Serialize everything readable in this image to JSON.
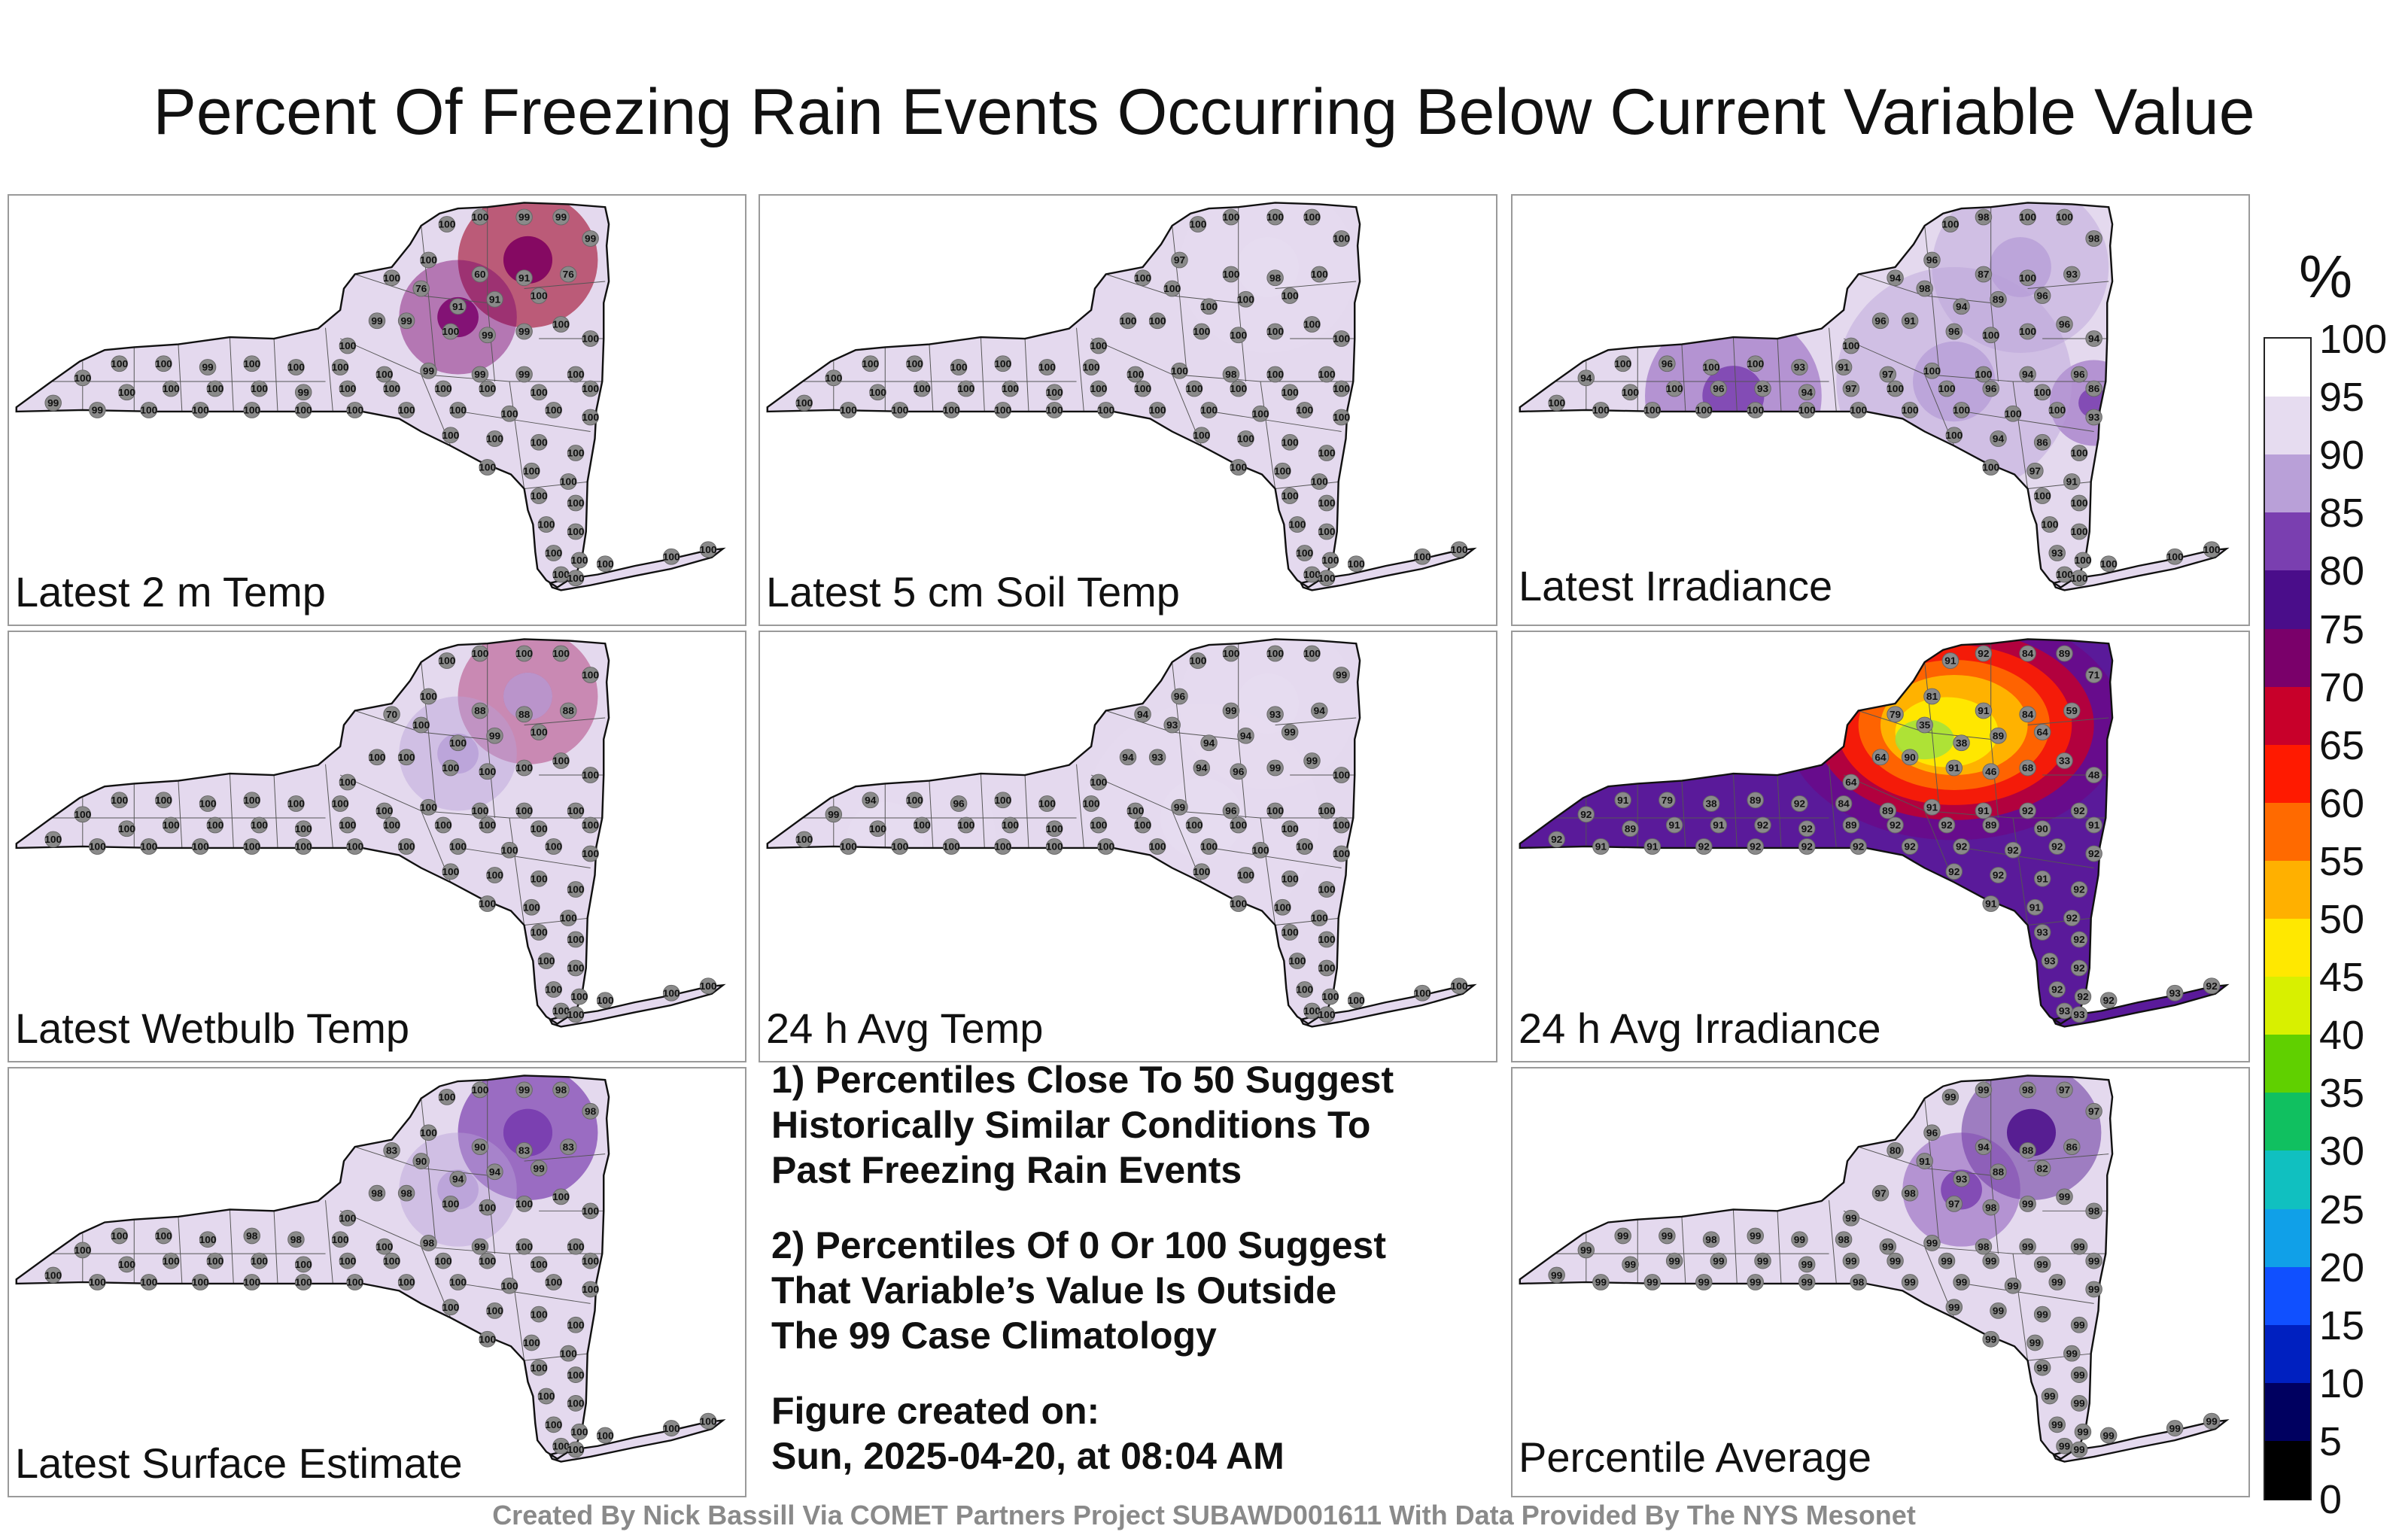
{
  "title": "Percent Of Freezing Rain Events Occurring Below Current Variable Value",
  "panels": [
    {
      "label": "Latest 2 m Temp",
      "hotspots": [
        {
          "v": 60,
          "r": "north"
        },
        {
          "v": 76,
          "r": "north"
        },
        {
          "v": 76,
          "r": "west-adk"
        }
      ],
      "stations": [
        100,
        100,
        99,
        99,
        99,
        100,
        100,
        60,
        91,
        76,
        100,
        91,
        91,
        76,
        99,
        99,
        100,
        99,
        99,
        100,
        100,
        100,
        100,
        100,
        99,
        100,
        100,
        100,
        100,
        99,
        99,
        99,
        100,
        100,
        100,
        100,
        100,
        100,
        99,
        100,
        100,
        100,
        100,
        100,
        100,
        99,
        99,
        100,
        100,
        100,
        100,
        100,
        100,
        100,
        100,
        100,
        100,
        100,
        100,
        100,
        100,
        100,
        100,
        100,
        100,
        100,
        100,
        100,
        100,
        100,
        100,
        100,
        100,
        100,
        100
      ]
    },
    {
      "label": "Latest 5 cm Soil Temp",
      "hotspots": [
        {
          "v": 97,
          "r": "north-light"
        }
      ],
      "stations": [
        100,
        100,
        100,
        100,
        100,
        97,
        100,
        100,
        98,
        100,
        100,
        100,
        100,
        100,
        100,
        100,
        100,
        100,
        100,
        100,
        100,
        100,
        100,
        100,
        100,
        100,
        100,
        100,
        100,
        100,
        98,
        100,
        100,
        100,
        100,
        100,
        100,
        100,
        100,
        100,
        100,
        100,
        100,
        100,
        100,
        100,
        100,
        100,
        100,
        100,
        100,
        100,
        100,
        100,
        100,
        100,
        100,
        100,
        100,
        100,
        100,
        100,
        100,
        100,
        100,
        100,
        100,
        100,
        100,
        100,
        100,
        100,
        100,
        100,
        100
      ]
    },
    {
      "label": "Latest Irradiance",
      "hotspots": [
        {
          "v": 87,
          "r": "north-light"
        },
        {
          "v": 86,
          "r": "east"
        },
        {
          "v": 86,
          "r": "finger"
        },
        {
          "v": 91,
          "r": "central"
        }
      ],
      "stations": [
        100,
        98,
        100,
        100,
        98,
        96,
        94,
        87,
        100,
        93,
        96,
        89,
        94,
        98,
        96,
        91,
        96,
        100,
        100,
        96,
        94,
        100,
        100,
        96,
        100,
        100,
        93,
        91,
        97,
        100,
        100,
        94,
        96,
        94,
        100,
        100,
        96,
        93,
        94,
        97,
        100,
        100,
        96,
        100,
        86,
        100,
        100,
        100,
        100,
        100,
        100,
        100,
        100,
        100,
        100,
        100,
        93,
        100,
        94,
        86,
        100,
        100,
        97,
        91,
        100,
        100,
        100,
        100,
        93,
        100,
        100,
        100,
        100,
        100,
        100
      ]
    },
    {
      "label": "Latest Wetbulb Temp",
      "hotspots": [
        {
          "v": 70,
          "r": "north"
        },
        {
          "v": 88,
          "r": "north"
        },
        {
          "v": 88,
          "r": "west-adk"
        }
      ],
      "stations": [
        100,
        100,
        100,
        100,
        100,
        100,
        70,
        88,
        88,
        88,
        100,
        99,
        100,
        100,
        100,
        100,
        100,
        100,
        100,
        100,
        100,
        100,
        100,
        100,
        100,
        100,
        100,
        100,
        100,
        100,
        100,
        100,
        100,
        100,
        100,
        100,
        100,
        100,
        100,
        100,
        100,
        100,
        100,
        100,
        100,
        100,
        100,
        100,
        100,
        100,
        100,
        100,
        100,
        100,
        100,
        100,
        100,
        100,
        100,
        100,
        100,
        100,
        100,
        100,
        100,
        100,
        100,
        100,
        100,
        100,
        100,
        100,
        100,
        100,
        100
      ]
    },
    {
      "label": "24 h Avg Temp",
      "hotspots": [
        {
          "v": 93,
          "r": "central"
        },
        {
          "v": 96,
          "r": "west"
        },
        {
          "v": 94,
          "r": "north-light"
        }
      ],
      "stations": [
        100,
        100,
        100,
        100,
        99,
        96,
        94,
        99,
        93,
        94,
        99,
        94,
        94,
        93,
        94,
        93,
        94,
        96,
        99,
        99,
        100,
        100,
        94,
        100,
        96,
        100,
        100,
        100,
        100,
        99,
        96,
        100,
        100,
        99,
        100,
        100,
        100,
        100,
        100,
        100,
        100,
        100,
        100,
        100,
        100,
        100,
        100,
        100,
        100,
        100,
        100,
        100,
        100,
        100,
        100,
        100,
        100,
        100,
        100,
        100,
        100,
        100,
        100,
        100,
        100,
        100,
        100,
        100,
        100,
        100,
        100,
        100,
        100,
        100,
        100
      ]
    },
    {
      "label": "24 h Avg Irradiance",
      "hotspots": [],
      "stations": [
        91,
        92,
        84,
        89,
        71,
        81,
        79,
        91,
        84,
        59,
        64,
        89,
        38,
        35,
        64,
        90,
        91,
        46,
        68,
        33,
        48,
        64,
        91,
        79,
        38,
        89,
        92,
        84,
        89,
        91,
        91,
        92,
        92,
        92,
        89,
        91,
        91,
        92,
        92,
        89,
        92,
        92,
        89,
        90,
        91,
        92,
        91,
        91,
        92,
        92,
        92,
        92,
        92,
        92,
        92,
        92,
        92,
        92,
        92,
        91,
        92,
        91,
        91,
        92,
        93,
        92,
        93,
        92,
        92,
        92,
        93,
        93,
        92,
        93,
        92
      ]
    },
    {
      "label": "Latest Surface Estimate",
      "hotspots": [
        {
          "v": 83,
          "r": "north"
        },
        {
          "v": 83,
          "r": "north"
        },
        {
          "v": 90,
          "r": "west-adk"
        }
      ],
      "stations": [
        100,
        100,
        99,
        98,
        98,
        100,
        83,
        90,
        83,
        83,
        99,
        94,
        94,
        90,
        98,
        98,
        100,
        100,
        100,
        100,
        100,
        100,
        100,
        100,
        100,
        98,
        98,
        100,
        100,
        98,
        99,
        100,
        100,
        100,
        100,
        100,
        100,
        100,
        100,
        100,
        100,
        100,
        100,
        100,
        100,
        100,
        100,
        100,
        100,
        100,
        100,
        100,
        100,
        100,
        100,
        100,
        100,
        100,
        100,
        100,
        100,
        100,
        100,
        100,
        100,
        100,
        100,
        100,
        100,
        100,
        100,
        100,
        100,
        100,
        100
      ]
    },
    {
      "label": "Percentile Average",
      "hotspots": [
        {
          "v": 80,
          "r": "north"
        },
        {
          "v": 82,
          "r": "west-adk"
        }
      ],
      "stations": [
        99,
        99,
        98,
        97,
        97,
        96,
        80,
        94,
        88,
        86,
        82,
        88,
        93,
        91,
        97,
        98,
        97,
        98,
        99,
        99,
        98,
        99,
        99,
        99,
        98,
        99,
        99,
        98,
        99,
        99,
        98,
        99,
        99,
        99,
        99,
        99,
        99,
        99,
        99,
        99,
        99,
        99,
        99,
        99,
        99,
        99,
        99,
        99,
        99,
        99,
        99,
        98,
        99,
        99,
        99,
        99,
        99,
        99,
        99,
        99,
        99,
        99,
        99,
        99,
        99,
        99,
        99,
        99,
        99,
        99,
        99,
        99,
        99,
        99,
        99
      ]
    }
  ],
  "notes": {
    "p1_l1": "1) Percentiles Close To 50 Suggest",
    "p1_l2": "Historically Similar Conditions To",
    "p1_l3": "Past Freezing Rain Events",
    "p2_l1": "2) Percentiles Of 0 Or 100 Suggest",
    "p2_l2": "That Variable’s Value Is Outside",
    "p2_l3": "The 99 Case Climatology",
    "p3_l1": "Figure created on:",
    "p3_l2": "Sun, 2025-04-20, at 08:04 AM"
  },
  "colorbar": {
    "unit": "%",
    "ticks": [
      "100",
      "95",
      "90",
      "85",
      "80",
      "75",
      "70",
      "65",
      "60",
      "55",
      "50",
      "45",
      "40",
      "35",
      "30",
      "25",
      "20",
      "15",
      "10",
      "5",
      "0"
    ],
    "colors": [
      "#ffffff",
      "#e6dcf0",
      "#b9a0d8",
      "#7a3fb0",
      "#4a0d8a",
      "#7a006a",
      "#c8002a",
      "#ff1a00",
      "#ff6a00",
      "#ffb000",
      "#ffe800",
      "#d8f000",
      "#60d000",
      "#10c060",
      "#10c0c0",
      "#10a0e8",
      "#1050ff",
      "#0020c0",
      "#000060",
      "#000000"
    ]
  },
  "credit": "Created By Nick Bassill Via COMET Partners Project SUBAWD001611 With Data Provided By The NYS Mesonet"
}
